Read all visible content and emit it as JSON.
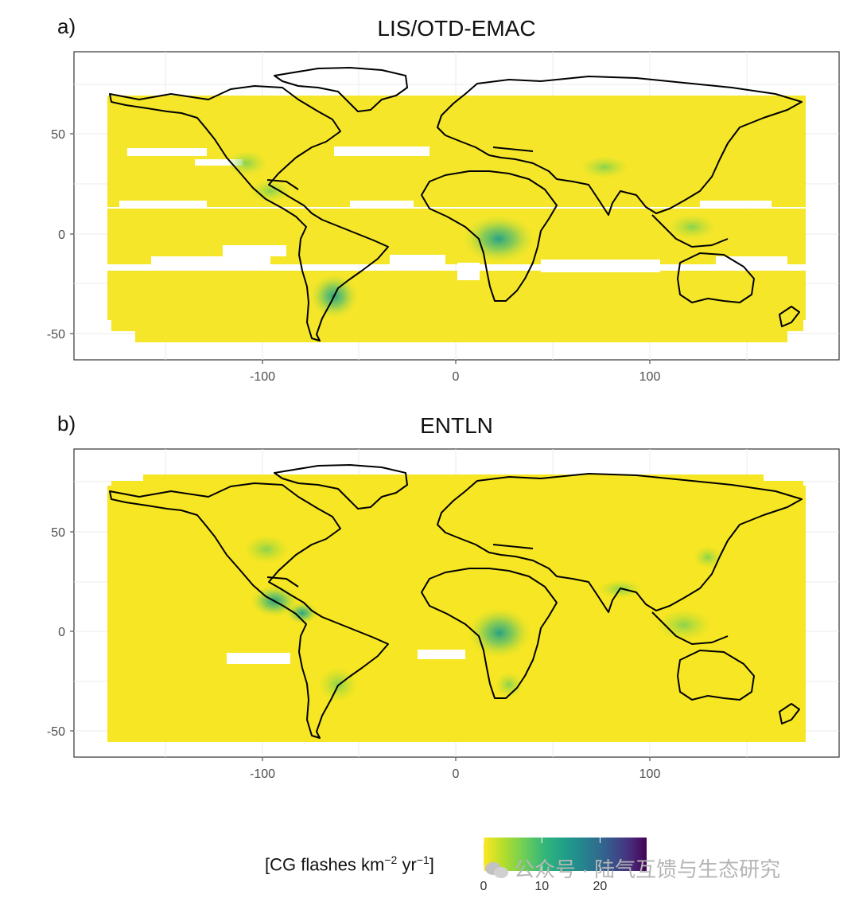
{
  "chart_data": [
    {
      "type": "heatmap",
      "panel": "a)",
      "title": "LIS/OTD-EMAC",
      "xlim": [
        -180,
        180
      ],
      "ylim": [
        -62,
        73
      ],
      "x_ticks": [
        "-100",
        "0",
        "100"
      ],
      "y_ticks": [
        "50",
        "0",
        "-50"
      ],
      "grid": true,
      "colorscale": "viridis (reversed: yellow = 0, purple = high)",
      "hotspots": [
        {
          "region": "Central Africa",
          "lon": 22,
          "lat": -2,
          "value": 10
        },
        {
          "region": "Northern Argentina",
          "lon": -62,
          "lat": -32,
          "value": 10
        },
        {
          "region": "Northern India",
          "lon": 78,
          "lat": 30,
          "value": 8
        },
        {
          "region": "Central America",
          "lon": -90,
          "lat": 15,
          "value": 8
        }
      ]
    },
    {
      "type": "heatmap",
      "panel": "b)",
      "title": "ENTLN",
      "xlim": [
        -180,
        180
      ],
      "ylim": [
        -62,
        73
      ],
      "x_ticks": [
        "-100",
        "0",
        "100"
      ],
      "y_ticks": [
        "50",
        "0",
        "-50"
      ],
      "grid": true,
      "colorscale": "viridis (reversed: yellow = 0, purple = high)",
      "hotspots": [
        {
          "region": "Congo Basin",
          "lon": 20,
          "lat": -2,
          "value": 15
        },
        {
          "region": "Central America",
          "lon": -88,
          "lat": 15,
          "value": 14
        },
        {
          "region": "Florida / Gulf Coast",
          "lon": -85,
          "lat": 30,
          "value": 10
        },
        {
          "region": "Southeast Asia",
          "lon": 110,
          "lat": 8,
          "value": 10
        },
        {
          "region": "Northern Argentina",
          "lon": -60,
          "lat": -28,
          "value": 9
        },
        {
          "region": "Great Plains USA",
          "lon": -100,
          "lat": 38,
          "value": 8
        }
      ]
    }
  ],
  "legend": {
    "title": "[CG flashes km",
    "exp1": "−2",
    "mid": " yr",
    "exp2": "−1",
    "end": "]",
    "ticks": [
      "0",
      "10",
      "20"
    ],
    "tick_values": [
      0,
      10,
      20
    ],
    "range": [
      0,
      28
    ],
    "colors": [
      "#fde725",
      "#b5de2b",
      "#6ece58",
      "#35b779",
      "#1f9e89",
      "#26828e",
      "#31688e",
      "#3e4989",
      "#482878",
      "#440154"
    ]
  },
  "watermark": "公众号 · 陆气互馈与生态研究"
}
